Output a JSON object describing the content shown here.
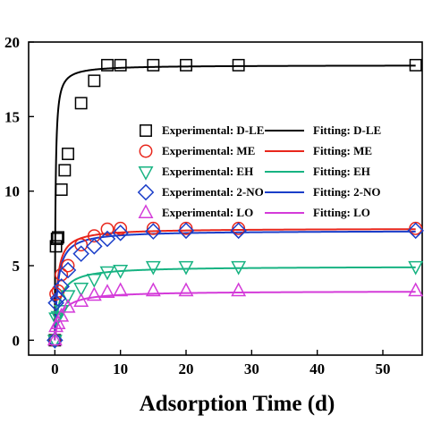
{
  "chart_data": {
    "type": "scatter",
    "xlabel": "Adsorption Time (d)",
    "ylabel": "",
    "xlim": [
      -4,
      56
    ],
    "ylim": [
      -1,
      20
    ],
    "xticks": [
      0,
      10,
      20,
      30,
      40,
      50
    ],
    "yticks": [
      0,
      5,
      10,
      15,
      20
    ],
    "xtick_labels": [
      "0",
      "10",
      "20",
      "30",
      "40",
      "50"
    ],
    "ytick_labels": [
      "0",
      "5",
      "10",
      "15",
      "20"
    ],
    "grid": false,
    "legend_placement": "center-right",
    "series": [
      {
        "name": "Experimental: D-LE",
        "marker": "square",
        "color": "#000000",
        "x": [
          0,
          0.17,
          0.33,
          0.5,
          1,
          1.5,
          2,
          4,
          6,
          8,
          10,
          15,
          20,
          28,
          55
        ],
        "y": [
          0,
          6.3,
          6.8,
          6.9,
          10.1,
          11.4,
          12.5,
          15.9,
          17.4,
          18.45,
          18.45,
          18.45,
          18.45,
          18.45,
          18.45
        ]
      },
      {
        "name": "Experimental: ME",
        "marker": "circle",
        "color": "#e8261c",
        "x": [
          0,
          0.17,
          0.5,
          1,
          2,
          4,
          6,
          8,
          10,
          15,
          20,
          28,
          55
        ],
        "y": [
          0,
          3.1,
          3.3,
          4.4,
          5.0,
          6.4,
          7.0,
          7.45,
          7.5,
          7.5,
          7.5,
          7.5,
          7.5
        ]
      },
      {
        "name": "Experimental: EH",
        "marker": "triangle-down",
        "color": "#17b382",
        "x": [
          0,
          0.17,
          0.5,
          1,
          2,
          4,
          6,
          8,
          10,
          15,
          20,
          28,
          55
        ],
        "y": [
          0,
          1.5,
          1.6,
          2.0,
          3.0,
          3.5,
          4.1,
          4.6,
          4.7,
          4.95,
          4.95,
          4.95,
          4.95
        ]
      },
      {
        "name": "Experimental: 2-NO",
        "marker": "diamond",
        "color": "#1a3ec9",
        "x": [
          0,
          0.17,
          0.5,
          1,
          2,
          4,
          6,
          8,
          10,
          15,
          20,
          28,
          55
        ],
        "y": [
          0,
          2.5,
          2.8,
          3.6,
          4.7,
          5.8,
          6.3,
          6.8,
          7.2,
          7.3,
          7.35,
          7.35,
          7.35
        ]
      },
      {
        "name": "Experimental: LO",
        "marker": "triangle-up",
        "color": "#d43bd9",
        "x": [
          0,
          0.17,
          0.5,
          1,
          2,
          4,
          6,
          8,
          10,
          15,
          20,
          28,
          55
        ],
        "y": [
          0,
          0.9,
          1.1,
          1.6,
          2.2,
          2.6,
          3.0,
          3.2,
          3.3,
          3.3,
          3.3,
          3.3,
          3.3
        ]
      }
    ],
    "fits": [
      {
        "name": "Fitting: D-LE",
        "color": "#000000",
        "qe": 18.45,
        "k": 0.55
      },
      {
        "name": "Fitting: ME",
        "color": "#e8261c",
        "qe": 7.5,
        "k": 0.35
      },
      {
        "name": "Fitting: EH",
        "color": "#17b382",
        "qe": 4.95,
        "k": 0.3
      },
      {
        "name": "Fitting: 2-NO",
        "color": "#1a3ec9",
        "qe": 7.35,
        "k": 0.3
      },
      {
        "name": "Fitting: LO",
        "color": "#d43bd9",
        "qe": 3.3,
        "k": 0.35
      }
    ]
  }
}
